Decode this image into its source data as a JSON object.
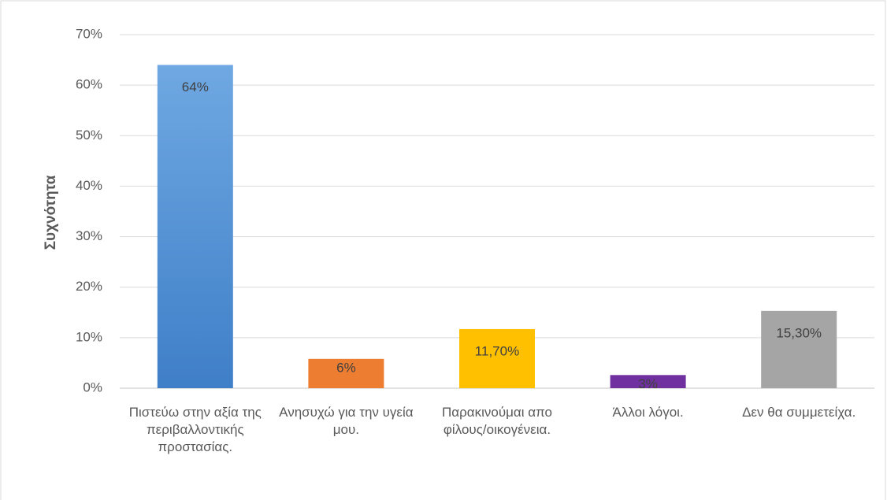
{
  "chart_data": {
    "type": "bar",
    "y_label": "Συχνότητα",
    "categories": [
      "Πιστεύω στην αξία της περιβαλλοντικής προστασίας.",
      "Ανησυχώ για την υγεία μου.",
      "Παρακινούμαι απο φίλους/οικογένεια.",
      "Άλλοι λόγοι.",
      "Δεν θα συμμετείχα."
    ],
    "values": [
      64,
      5.8,
      11.7,
      2.6,
      15.3
    ],
    "value_labels": [
      "64%",
      "6%",
      "11,70%",
      "3%",
      "15,30%"
    ],
    "colors": [
      "#4a8ad2",
      "#ed7d31",
      "#ffc000",
      "#7030a0",
      "#a5a5a5"
    ],
    "ylim": [
      0,
      70
    ],
    "yticks": [
      {
        "value": 0,
        "label": "0%"
      },
      {
        "value": 10,
        "label": "10%"
      },
      {
        "value": 20,
        "label": "20%"
      },
      {
        "value": 30,
        "label": "30%"
      },
      {
        "value": 40,
        "label": "40%"
      },
      {
        "value": 50,
        "label": "50%"
      },
      {
        "value": 60,
        "label": "60%"
      },
      {
        "value": 70,
        "label": "70%"
      }
    ],
    "grid": true
  }
}
